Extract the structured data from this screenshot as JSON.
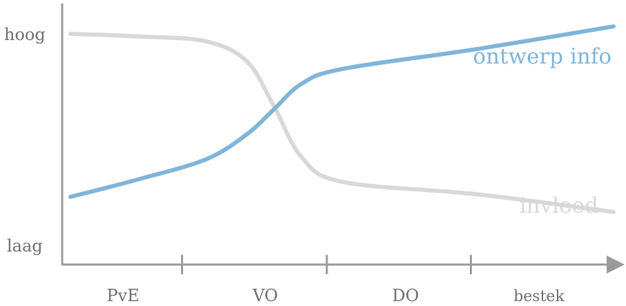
{
  "chart_data": {
    "type": "line",
    "y_tick_labels": [
      "laag",
      "hoog"
    ],
    "categories": [
      "PvE",
      "VO",
      "DO",
      "bestek"
    ],
    "series": [
      {
        "name": "ontwerp info",
        "color": "#7fb5d8",
        "points": [
          [
            0.0,
            0.27
          ],
          [
            0.5,
            0.34
          ],
          [
            1.0,
            0.42
          ],
          [
            1.3,
            0.52
          ],
          [
            1.5,
            0.62
          ],
          [
            1.7,
            0.72
          ],
          [
            2.0,
            0.78
          ],
          [
            3.0,
            0.86
          ],
          [
            4.0,
            0.95
          ]
        ]
      },
      {
        "name": "invloed",
        "color": "#d8d8d8",
        "points": [
          [
            0.0,
            0.92
          ],
          [
            0.5,
            0.91
          ],
          [
            1.0,
            0.89
          ],
          [
            1.3,
            0.81
          ],
          [
            1.5,
            0.63
          ],
          [
            1.7,
            0.43
          ],
          [
            2.0,
            0.33
          ],
          [
            3.0,
            0.28
          ],
          [
            4.0,
            0.21
          ]
        ]
      }
    ],
    "ylim": [
      0,
      1
    ],
    "xlim": [
      0,
      4
    ],
    "grid": false,
    "axis_color": "#9a9a9a"
  }
}
